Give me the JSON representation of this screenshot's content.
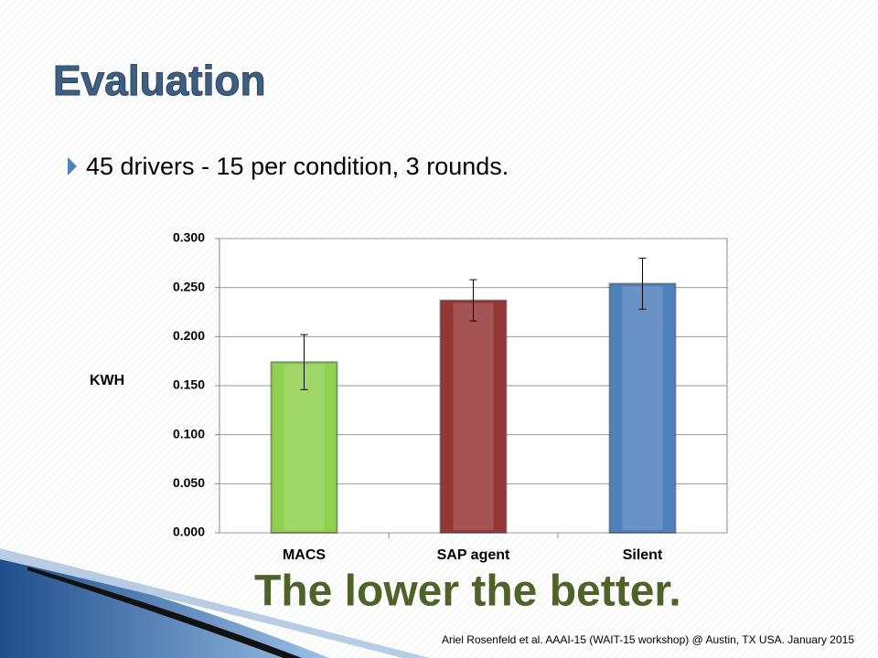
{
  "slide": {
    "title": "Evaluation",
    "bullet": "45 drivers - 15 per condition, 3 rounds.",
    "footer": "Ariel Rosenfeld et al. AAAI-15 (WAIT-15  workshop) @ Austin, TX USA. January 2015"
  },
  "chart_data": {
    "type": "bar",
    "y_label": "KWH",
    "annotation": "The lower the better.",
    "categories": [
      "MACS",
      "SAP agent",
      "Silent"
    ],
    "values": [
      0.174,
      0.237,
      0.254
    ],
    "errors": [
      0.028,
      0.021,
      0.026
    ],
    "colors": [
      "#8fd14f",
      "#953735",
      "#4f81bd"
    ],
    "ylim": [
      0,
      0.3
    ],
    "yticks": [
      {
        "value": 0,
        "label": "0.000"
      },
      {
        "value": 0.05,
        "label": "0.050"
      },
      {
        "value": 0.1,
        "label": "0.100"
      },
      {
        "value": 0.15,
        "label": "0.150"
      },
      {
        "value": 0.2,
        "label": "0.200"
      },
      {
        "value": 0.25,
        "label": "0.250"
      },
      {
        "value": 0.3,
        "label": "0.300"
      }
    ],
    "grid": true
  }
}
